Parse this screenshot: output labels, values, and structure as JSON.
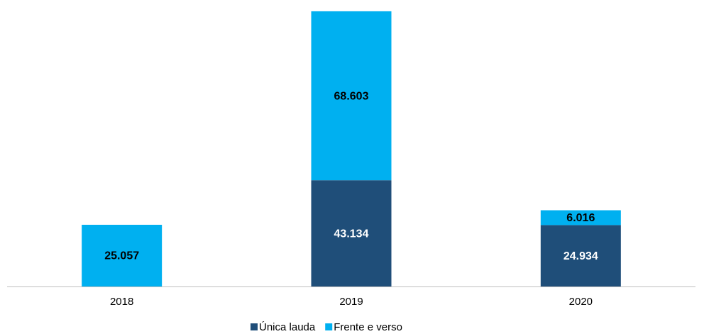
{
  "chart_data": {
    "type": "stacked_bar",
    "categories": [
      "2018",
      "2019",
      "2020"
    ],
    "series": [
      {
        "name": "Única lauda",
        "color": "#1f4e79",
        "values": [
          null,
          43134,
          24934
        ],
        "value_labels": [
          null,
          "43.134",
          "24.934"
        ]
      },
      {
        "name": "Frente e verso",
        "color": "#00b0f0",
        "values": [
          25057,
          68603,
          6016
        ],
        "value_labels": [
          "25.057",
          "68.603",
          "6.016"
        ]
      }
    ],
    "ylim": [
      0,
      112000
    ]
  }
}
